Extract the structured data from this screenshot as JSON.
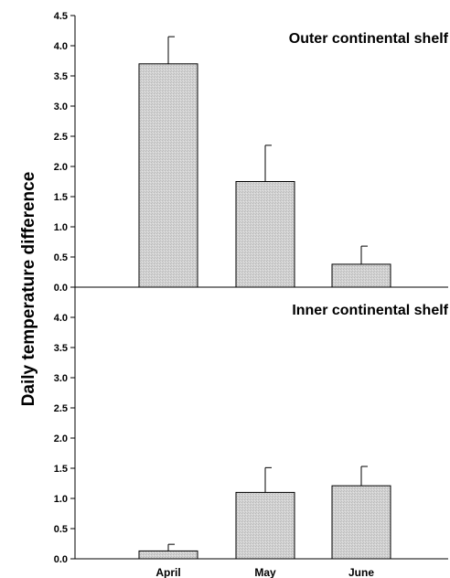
{
  "chart_data": {
    "type": "bar",
    "ylabel": "Daily temperature difference",
    "categories": [
      "April",
      "May",
      "June"
    ],
    "bar_color": "#d2d2d2",
    "panels": [
      {
        "title": "Outer continental shelf",
        "ylim": [
          0,
          4.5
        ],
        "yticks": [
          "0.0",
          "0.5",
          "1.0",
          "1.5",
          "2.0",
          "2.5",
          "3.0",
          "3.5",
          "4.0",
          "4.5"
        ],
        "values": [
          3.7,
          1.75,
          0.38
        ],
        "errors": [
          0.45,
          0.6,
          0.3
        ]
      },
      {
        "title": "Inner continental shelf",
        "ylim": [
          0,
          4.5
        ],
        "yticks": [
          "0.0",
          "0.5",
          "1.0",
          "1.5",
          "2.0",
          "2.5",
          "3.0",
          "3.5",
          "4.0"
        ],
        "values": [
          0.13,
          1.1,
          1.21
        ],
        "errors": [
          0.11,
          0.41,
          0.32
        ]
      }
    ]
  }
}
